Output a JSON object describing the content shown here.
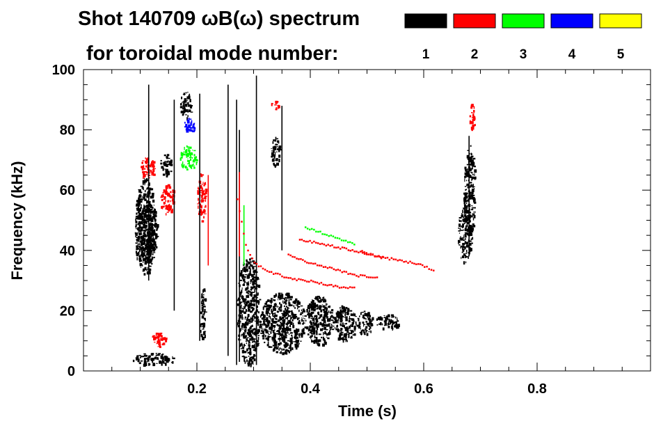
{
  "chart_data": {
    "type": "heatmap",
    "title_line1": "Shot 140709 ωB(ω) spectrum",
    "title_line2": "for toroidal mode number:",
    "xlabel": "Time (s)",
    "ylabel": "Frequency (kHz)",
    "xlim": [
      0.0,
      1.0
    ],
    "ylim": [
      0,
      100
    ],
    "xticks": [
      0.2,
      0.4,
      0.6,
      0.8
    ],
    "xtick_labels": [
      "0.2",
      "0.4",
      "0.6",
      "0.8"
    ],
    "yticks": [
      0,
      20,
      40,
      60,
      80,
      100
    ],
    "ytick_labels": [
      "0",
      "20",
      "40",
      "60",
      "80",
      "100"
    ],
    "legend": {
      "placement": "top",
      "entries": [
        {
          "label": "1",
          "color": "#000000"
        },
        {
          "label": "2",
          "color": "#ff0000"
        },
        {
          "label": "3",
          "color": "#00ff00"
        },
        {
          "label": "4",
          "color": "#0000ff"
        },
        {
          "label": "5",
          "color": "#ffff00"
        }
      ]
    },
    "blobs": [
      {
        "n": 1,
        "t0": 0.09,
        "t1": 0.125,
        "f0": 32,
        "f1": 64
      },
      {
        "n": 1,
        "t0": 0.095,
        "t1": 0.13,
        "f0": 36,
        "f1": 56
      },
      {
        "n": 1,
        "t0": 0.085,
        "t1": 0.16,
        "f0": 2,
        "f1": 6
      },
      {
        "n": 1,
        "t0": 0.17,
        "t1": 0.19,
        "f0": 84,
        "f1": 93
      },
      {
        "n": 1,
        "t0": 0.135,
        "t1": 0.155,
        "f0": 65,
        "f1": 72
      },
      {
        "n": 1,
        "t0": 0.205,
        "t1": 0.215,
        "f0": 10,
        "f1": 28
      },
      {
        "n": 1,
        "t0": 0.27,
        "t1": 0.31,
        "f0": 2,
        "f1": 38
      },
      {
        "n": 1,
        "t0": 0.31,
        "t1": 0.39,
        "f0": 6,
        "f1": 26
      },
      {
        "n": 1,
        "t0": 0.39,
        "t1": 0.44,
        "f0": 9,
        "f1": 25
      },
      {
        "n": 1,
        "t0": 0.44,
        "t1": 0.48,
        "f0": 10,
        "f1": 22
      },
      {
        "n": 1,
        "t0": 0.48,
        "t1": 0.51,
        "f0": 12,
        "f1": 20
      },
      {
        "n": 1,
        "t0": 0.515,
        "t1": 0.56,
        "f0": 14,
        "f1": 19
      },
      {
        "n": 1,
        "t0": 0.33,
        "t1": 0.345,
        "f0": 68,
        "f1": 78
      },
      {
        "n": 1,
        "t0": 0.66,
        "t1": 0.685,
        "f0": 36,
        "f1": 55
      },
      {
        "n": 1,
        "t0": 0.67,
        "t1": 0.69,
        "f0": 45,
        "f1": 75
      },
      {
        "n": 2,
        "t0": 0.1,
        "t1": 0.125,
        "f0": 64,
        "f1": 71
      },
      {
        "n": 2,
        "t0": 0.135,
        "t1": 0.16,
        "f0": 52,
        "f1": 62
      },
      {
        "n": 2,
        "t0": 0.12,
        "t1": 0.145,
        "f0": 8,
        "f1": 13
      },
      {
        "n": 2,
        "t0": 0.2,
        "t1": 0.215,
        "f0": 50,
        "f1": 66
      },
      {
        "n": 2,
        "t0": 0.33,
        "t1": 0.345,
        "f0": 87,
        "f1": 90
      },
      {
        "n": 2,
        "t0": 0.68,
        "t1": 0.69,
        "f0": 80,
        "f1": 89
      },
      {
        "n": 3,
        "t0": 0.17,
        "t1": 0.2,
        "f0": 67,
        "f1": 75
      },
      {
        "n": 4,
        "t0": 0.175,
        "t1": 0.195,
        "f0": 79,
        "f1": 84
      }
    ],
    "tracks": [
      {
        "n": 2,
        "points": [
          [
            0.27,
            57
          ],
          [
            0.285,
            42
          ],
          [
            0.3,
            36
          ],
          [
            0.33,
            33
          ],
          [
            0.36,
            31
          ],
          [
            0.4,
            30
          ],
          [
            0.45,
            28
          ],
          [
            0.48,
            28
          ]
        ]
      },
      {
        "n": 2,
        "points": [
          [
            0.36,
            39
          ],
          [
            0.4,
            36
          ],
          [
            0.44,
            34
          ],
          [
            0.48,
            32
          ],
          [
            0.52,
            31
          ]
        ]
      },
      {
        "n": 2,
        "points": [
          [
            0.49,
            40
          ],
          [
            0.52,
            38
          ],
          [
            0.56,
            37
          ],
          [
            0.6,
            35
          ],
          [
            0.62,
            33
          ]
        ]
      },
      {
        "n": 2,
        "points": [
          [
            0.38,
            44
          ],
          [
            0.43,
            42
          ],
          [
            0.48,
            40
          ],
          [
            0.53,
            38
          ]
        ]
      },
      {
        "n": 3,
        "points": [
          [
            0.39,
            48
          ],
          [
            0.42,
            46
          ],
          [
            0.45,
            44
          ],
          [
            0.48,
            42
          ]
        ]
      }
    ],
    "streaks": [
      {
        "n": 1,
        "t": 0.115,
        "f0": 30,
        "f1": 95
      },
      {
        "n": 1,
        "t": 0.16,
        "f0": 20,
        "f1": 90
      },
      {
        "n": 1,
        "t": 0.205,
        "f0": 10,
        "f1": 92
      },
      {
        "n": 1,
        "t": 0.255,
        "f0": 5,
        "f1": 95
      },
      {
        "n": 1,
        "t": 0.27,
        "f0": 2,
        "f1": 90
      },
      {
        "n": 1,
        "t": 0.305,
        "f0": 2,
        "f1": 98
      },
      {
        "n": 1,
        "t": 0.275,
        "f0": 3,
        "f1": 80
      },
      {
        "n": 1,
        "t": 0.35,
        "f0": 40,
        "f1": 88
      },
      {
        "n": 1,
        "t": 0.68,
        "f0": 38,
        "f1": 78
      },
      {
        "n": 2,
        "t": 0.22,
        "f0": 35,
        "f1": 65
      },
      {
        "n": 2,
        "t": 0.275,
        "f0": 38,
        "f1": 66
      },
      {
        "n": 3,
        "t": 0.283,
        "f0": 35,
        "f1": 55
      }
    ]
  }
}
